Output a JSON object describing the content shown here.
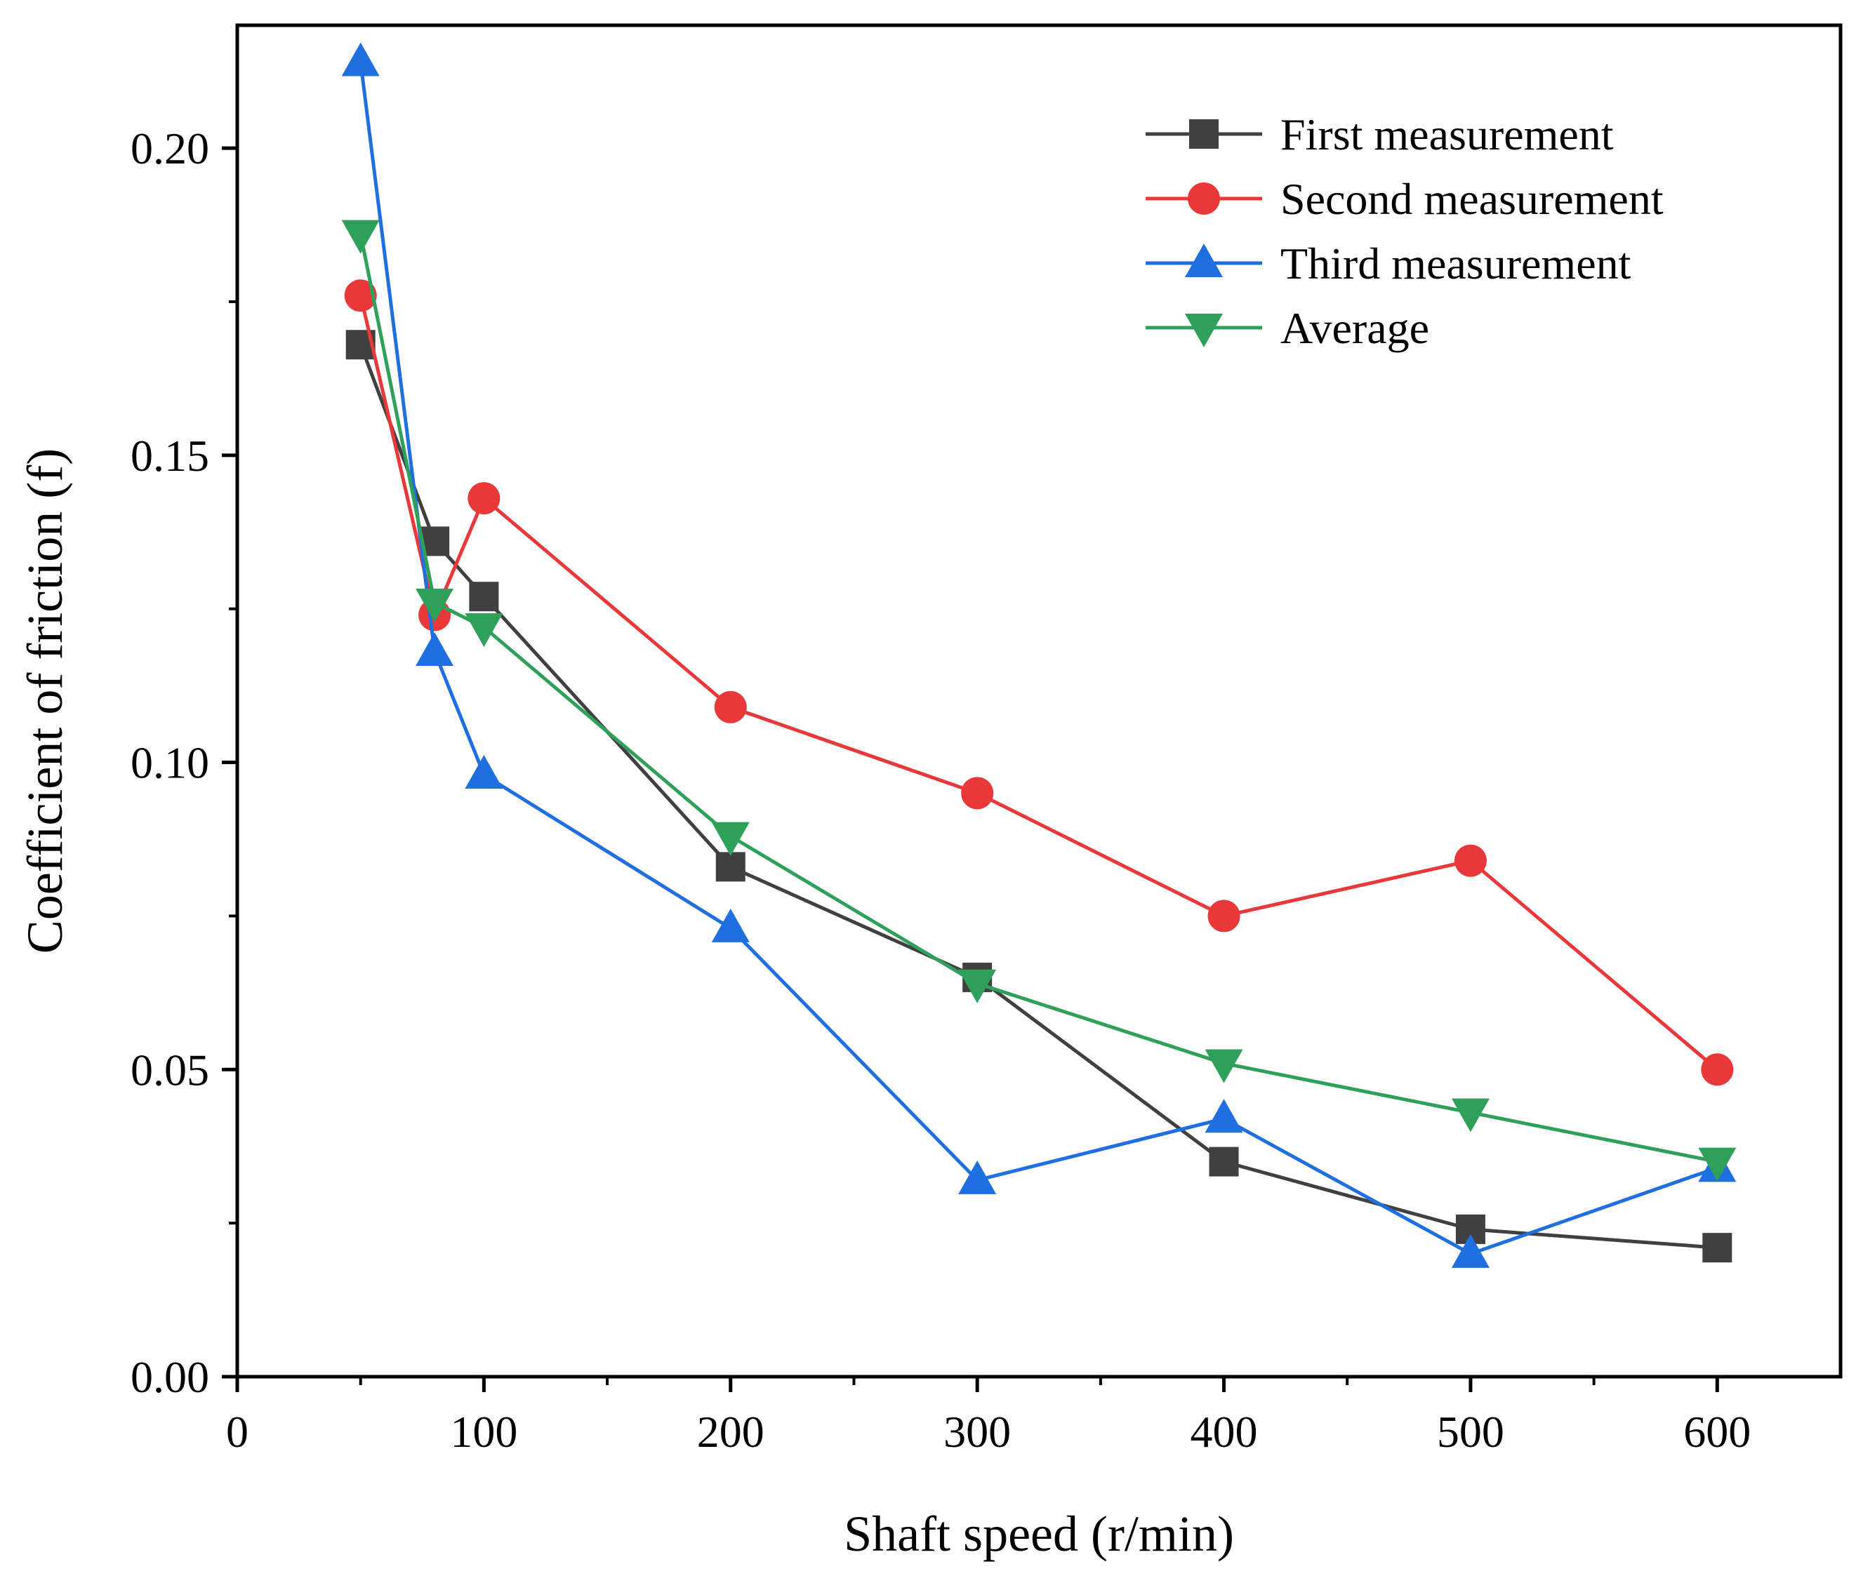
{
  "chart_data": {
    "type": "line",
    "title": "",
    "xlabel": "Shaft speed (r/min)",
    "ylabel": "Coefficient of friction (f)",
    "xlim": [
      0,
      650
    ],
    "ylim": [
      0,
      0.22
    ],
    "xticks": [
      0,
      100,
      200,
      300,
      400,
      500,
      600
    ],
    "xtick_labels": [
      "0",
      "100",
      "200",
      "300",
      "400",
      "500",
      "600"
    ],
    "yticks": [
      0,
      0.05,
      0.1,
      0.15,
      0.2
    ],
    "ytick_labels": [
      "0.00",
      "0.05",
      "0.10",
      "0.15",
      "0.20"
    ],
    "grid": false,
    "legend_position": "top-right",
    "x": [
      50,
      80,
      100,
      200,
      300,
      400,
      500,
      600
    ],
    "series": [
      {
        "name": "First measurement",
        "color": "#404040",
        "marker": "square",
        "values": [
          0.168,
          0.136,
          0.127,
          0.083,
          0.065,
          0.035,
          0.024,
          0.021
        ]
      },
      {
        "name": "Second measurement",
        "color": "#e8383a",
        "marker": "circle",
        "values": [
          0.176,
          0.124,
          0.143,
          0.109,
          0.095,
          0.075,
          0.084,
          0.05
        ]
      },
      {
        "name": "Third measurement",
        "color": "#1f6fe0",
        "marker": "triangle-up",
        "values": [
          0.214,
          0.118,
          0.098,
          0.073,
          0.032,
          0.042,
          0.02,
          0.034
        ]
      },
      {
        "name": "Average",
        "color": "#2ea05a",
        "marker": "triangle-down",
        "values": [
          0.186,
          0.126,
          0.122,
          0.088,
          0.064,
          0.051,
          0.043,
          0.035
        ]
      }
    ]
  }
}
